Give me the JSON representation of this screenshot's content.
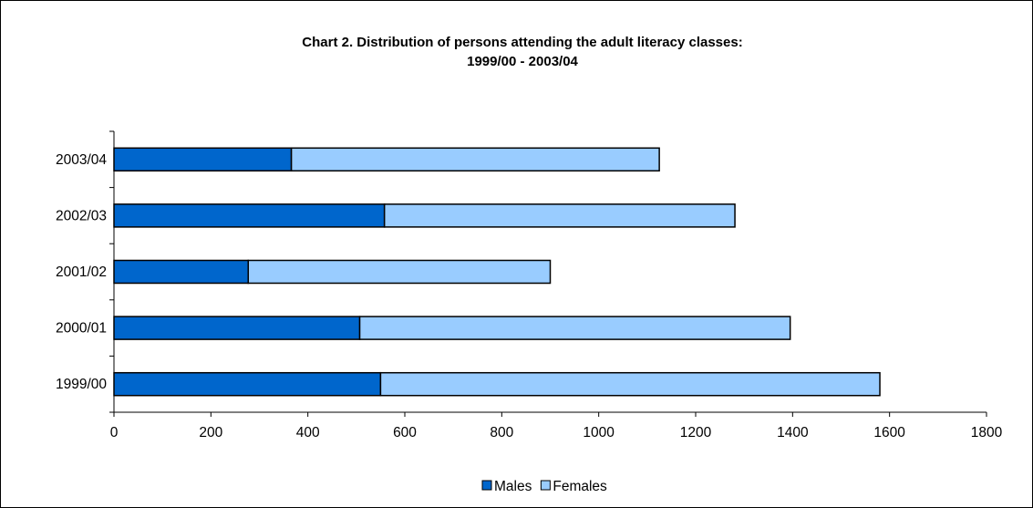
{
  "chart_data": {
    "type": "bar",
    "orientation": "horizontal",
    "stacked": true,
    "title": "Chart 2.  Distribution of persons attending the adult literacy classes:",
    "subtitle": "1999/00 - 2003/04",
    "categories": [
      "1999/00",
      "2000/01",
      "2001/02",
      "2002/03",
      "2003/04"
    ],
    "series": [
      {
        "name": "Males",
        "color": "#0066cc",
        "values": [
          550,
          507,
          277,
          558,
          366
        ]
      },
      {
        "name": "Females",
        "color": "#99ccff",
        "values": [
          1030,
          888,
          623,
          723,
          759
        ]
      }
    ],
    "xlim": [
      0,
      1800
    ],
    "xticks": [
      "0",
      "200",
      "400",
      "600",
      "800",
      "1000",
      "1200",
      "1400",
      "1600",
      "1800"
    ],
    "grid": false,
    "legend_position": "bottom",
    "xlabel": "",
    "ylabel": ""
  }
}
